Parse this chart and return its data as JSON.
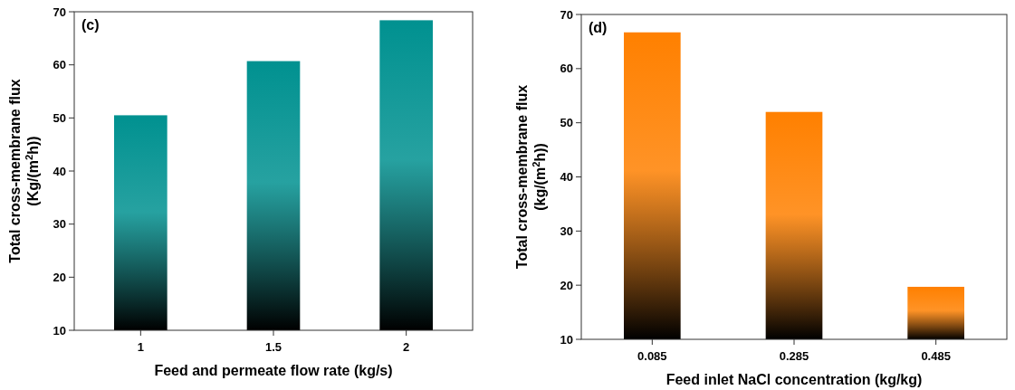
{
  "chart_data": [
    {
      "type": "bar",
      "categories": [
        "1",
        "1.5",
        "2"
      ],
      "values": [
        50.5,
        60.7,
        68.4
      ],
      "color": "#009190",
      "ylim": [
        10,
        70
      ],
      "yticks": [
        10,
        20,
        30,
        40,
        50,
        60,
        70
      ],
      "xlabel": "Feed and permeate flow rate (kg/s)",
      "ylabel": "Total cross-membrane flux\n(Kg/(m$^{2}$h))",
      "annotations": [
        "(c)"
      ],
      "grid": false
    },
    {
      "type": "bar",
      "categories": [
        "0.085",
        "0.285",
        "0.485"
      ],
      "values": [
        66.7,
        52.0,
        19.7
      ],
      "color": "#ff8000",
      "ylim": [
        10,
        70
      ],
      "yticks": [
        10,
        20,
        30,
        40,
        50,
        60,
        70
      ],
      "xlabel": "Feed inlet NaCl concentration (kg/kg)",
      "ylabel": "Total cross-membrane flux\n(kg/(m$^{2}$h))",
      "annotations": [
        "(d)"
      ],
      "grid": false
    }
  ]
}
